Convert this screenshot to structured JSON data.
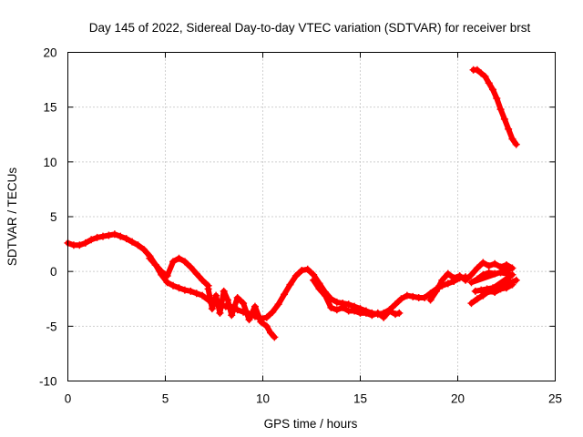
{
  "chart_data": {
    "type": "scatter",
    "title": "Day 145 of 2022, Sidereal Day-to-day VTEC variation (SDTVAR) for receiver brst",
    "xlabel": "GPS time / hours",
    "ylabel": "SDTVAR / TECUs",
    "xlim": [
      0,
      25
    ],
    "ylim": [
      -10,
      20
    ],
    "x_ticks": [
      0,
      5,
      10,
      15,
      20,
      25
    ],
    "y_ticks": [
      -10,
      -5,
      0,
      5,
      10,
      15,
      20
    ],
    "x_tick_labels": [
      "0",
      "5",
      "10",
      "15",
      "20",
      "25"
    ],
    "y_tick_labels": [
      "-10",
      "-5",
      "0",
      "5",
      "10",
      "15",
      "20"
    ],
    "grid": true,
    "marker": "+",
    "color": "#ff0000",
    "series": [
      {
        "name": "main-trace",
        "points": [
          [
            0.0,
            2.6
          ],
          [
            0.3,
            2.4
          ],
          [
            0.6,
            2.4
          ],
          [
            0.9,
            2.6
          ],
          [
            1.2,
            2.9
          ],
          [
            1.5,
            3.1
          ],
          [
            1.8,
            3.2
          ],
          [
            2.1,
            3.3
          ],
          [
            2.4,
            3.4
          ],
          [
            2.7,
            3.2
          ],
          [
            3.0,
            3.0
          ],
          [
            3.3,
            2.7
          ],
          [
            3.6,
            2.4
          ],
          [
            3.9,
            2.0
          ],
          [
            4.2,
            1.4
          ],
          [
            4.5,
            0.6
          ],
          [
            4.8,
            -0.3
          ],
          [
            5.1,
            -1.0
          ],
          [
            5.4,
            -1.3
          ],
          [
            5.7,
            -1.5
          ],
          [
            6.0,
            -1.7
          ],
          [
            6.3,
            -1.8
          ],
          [
            6.6,
            -2.0
          ],
          [
            6.9,
            -2.2
          ],
          [
            7.2,
            -2.6
          ],
          [
            7.5,
            -2.9
          ],
          [
            7.8,
            -3.0
          ],
          [
            8.1,
            -3.2
          ],
          [
            8.4,
            -3.3
          ],
          [
            8.7,
            -3.5
          ],
          [
            9.0,
            -3.7
          ],
          [
            9.3,
            -3.9
          ],
          [
            9.6,
            -4.1
          ],
          [
            9.9,
            -4.3
          ],
          [
            10.2,
            -4.2
          ],
          [
            10.5,
            -3.7
          ],
          [
            10.8,
            -3.0
          ],
          [
            11.1,
            -2.1
          ],
          [
            11.4,
            -1.2
          ],
          [
            11.7,
            -0.4
          ],
          [
            12.0,
            0.1
          ],
          [
            12.3,
            0.2
          ],
          [
            12.6,
            -0.3
          ],
          [
            12.9,
            -1.1
          ],
          [
            13.2,
            -1.9
          ],
          [
            13.5,
            -2.5
          ],
          [
            13.8,
            -2.8
          ],
          [
            14.1,
            -2.9
          ],
          [
            14.4,
            -3.0
          ],
          [
            14.7,
            -3.2
          ],
          [
            15.0,
            -3.4
          ],
          [
            15.3,
            -3.6
          ],
          [
            15.6,
            -3.8
          ],
          [
            15.9,
            -3.9
          ],
          [
            16.2,
            -3.8
          ],
          [
            16.5,
            -3.5
          ],
          [
            16.8,
            -3.0
          ],
          [
            17.1,
            -2.5
          ],
          [
            17.4,
            -2.2
          ],
          [
            17.7,
            -2.3
          ],
          [
            18.0,
            -2.4
          ],
          [
            18.3,
            -2.4
          ],
          [
            18.6,
            -2.0
          ],
          [
            18.9,
            -1.6
          ],
          [
            19.2,
            -1.3
          ],
          [
            19.5,
            -1.1
          ],
          [
            19.8,
            -0.9
          ],
          [
            20.1,
            -0.6
          ],
          [
            20.4,
            -0.5
          ]
        ]
      },
      {
        "name": "upper-branch-5h",
        "points": [
          [
            4.2,
            1.2
          ],
          [
            4.5,
            0.6
          ],
          [
            4.8,
            0.0
          ],
          [
            5.1,
            -0.4
          ],
          [
            5.4,
            0.9
          ],
          [
            5.7,
            1.2
          ],
          [
            6.0,
            0.9
          ],
          [
            6.3,
            0.4
          ],
          [
            6.6,
            -0.2
          ],
          [
            6.9,
            -0.8
          ],
          [
            7.2,
            -1.3
          ]
        ]
      },
      {
        "name": "scatter-7-11h",
        "points": [
          [
            7.2,
            -1.6
          ],
          [
            7.4,
            -3.4
          ],
          [
            7.6,
            -2.2
          ],
          [
            7.8,
            -3.8
          ],
          [
            8.0,
            -1.8
          ],
          [
            8.2,
            -2.6
          ],
          [
            8.4,
            -4.0
          ],
          [
            8.7,
            -2.4
          ],
          [
            9.0,
            -2.9
          ],
          [
            9.3,
            -4.4
          ],
          [
            9.6,
            -3.2
          ],
          [
            9.9,
            -4.6
          ],
          [
            10.2,
            -5.0
          ],
          [
            10.4,
            -5.6
          ],
          [
            10.6,
            -6.0
          ]
        ]
      },
      {
        "name": "lower-branch-12-17h",
        "points": [
          [
            12.6,
            -0.8
          ],
          [
            12.9,
            -1.6
          ],
          [
            13.2,
            -2.2
          ],
          [
            13.5,
            -3.3
          ],
          [
            13.8,
            -3.5
          ],
          [
            14.1,
            -3.3
          ],
          [
            14.4,
            -3.6
          ],
          [
            14.7,
            -3.6
          ],
          [
            15.0,
            -3.8
          ],
          [
            15.3,
            -3.8
          ],
          [
            15.6,
            -4.0
          ],
          [
            15.9,
            -3.8
          ],
          [
            16.2,
            -4.2
          ],
          [
            16.5,
            -3.6
          ],
          [
            16.8,
            -3.9
          ],
          [
            17.0,
            -3.8
          ]
        ]
      },
      {
        "name": "late-branches-19-23h",
        "points": [
          [
            18.6,
            -2.6
          ],
          [
            18.9,
            -1.8
          ],
          [
            19.2,
            -0.8
          ],
          [
            19.5,
            -0.2
          ],
          [
            19.8,
            -0.6
          ],
          [
            20.1,
            -0.4
          ],
          [
            20.4,
            -0.8
          ],
          [
            20.7,
            -0.3
          ],
          [
            21.0,
            0.3
          ],
          [
            21.3,
            0.8
          ],
          [
            21.6,
            0.5
          ],
          [
            21.9,
            0.7
          ],
          [
            22.2,
            0.4
          ],
          [
            22.5,
            0.6
          ],
          [
            22.8,
            0.3
          ],
          [
            20.7,
            -1.0
          ],
          [
            21.0,
            -0.7
          ],
          [
            21.3,
            -0.3
          ],
          [
            21.6,
            -0.1
          ],
          [
            21.9,
            -0.2
          ],
          [
            22.2,
            -0.1
          ],
          [
            22.5,
            -0.2
          ],
          [
            22.8,
            -0.3
          ],
          [
            20.7,
            -2.9
          ],
          [
            21.0,
            -2.5
          ],
          [
            21.3,
            -2.2
          ],
          [
            21.6,
            -1.8
          ],
          [
            21.9,
            -1.9
          ],
          [
            22.2,
            -1.6
          ],
          [
            22.5,
            -1.5
          ],
          [
            22.8,
            -1.2
          ],
          [
            20.9,
            -1.8
          ],
          [
            21.2,
            -1.7
          ],
          [
            21.5,
            -1.6
          ],
          [
            21.8,
            -1.5
          ],
          [
            22.1,
            -1.3
          ],
          [
            22.4,
            -1.1
          ],
          [
            22.7,
            -1.0
          ],
          [
            23.0,
            -0.8
          ]
        ]
      },
      {
        "name": "late-high-trace",
        "points": [
          [
            20.8,
            18.4
          ],
          [
            21.0,
            18.4
          ],
          [
            21.2,
            18.1
          ],
          [
            21.4,
            17.8
          ],
          [
            21.6,
            17.2
          ],
          [
            21.8,
            16.6
          ],
          [
            22.0,
            15.8
          ],
          [
            22.2,
            14.8
          ],
          [
            22.4,
            13.9
          ],
          [
            22.6,
            13.0
          ],
          [
            22.8,
            12.1
          ],
          [
            23.0,
            11.6
          ]
        ]
      }
    ]
  }
}
